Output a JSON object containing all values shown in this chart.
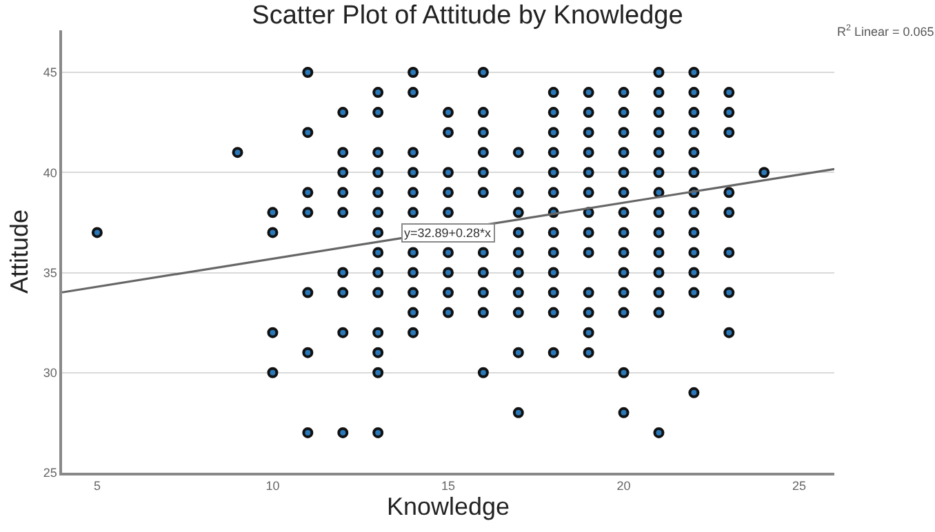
{
  "chart_data": {
    "type": "scatter",
    "title": "Scatter Plot of Attitude by Knowledge",
    "xlabel": "Knowledge",
    "ylabel": "Attitude",
    "xlim": [
      4,
      26
    ],
    "ylim": [
      25,
      47.1
    ],
    "xticks": [
      5,
      10,
      15,
      20,
      25
    ],
    "yticks": [
      25,
      30,
      35,
      40,
      45
    ],
    "grid": "y",
    "marker": "circle",
    "annotations": [
      "R$^{2}$ Linear = 0.065",
      {
        "text": "y=32.89+0.28*x",
        "x": 15,
        "y": 37
      }
    ],
    "series": [
      {
        "color": "#2a78b8",
        "x": [
          5,
          9,
          10,
          10,
          10,
          10,
          11,
          11,
          11,
          11,
          11,
          11,
          11,
          12,
          12,
          12,
          12,
          12,
          12,
          12,
          12,
          12,
          13,
          13,
          13,
          13,
          13,
          13,
          13,
          13,
          13,
          13,
          13,
          13,
          13,
          13,
          14,
          14,
          14,
          14,
          14,
          14,
          14,
          14,
          14,
          14,
          14,
          15,
          15,
          15,
          15,
          15,
          15,
          15,
          15,
          15,
          16,
          16,
          16,
          16,
          16,
          16,
          16,
          16,
          16,
          16,
          16,
          17,
          17,
          17,
          17,
          17,
          17,
          17,
          17,
          17,
          17,
          18,
          18,
          18,
          18,
          18,
          18,
          18,
          18,
          18,
          18,
          18,
          18,
          18,
          19,
          19,
          19,
          19,
          19,
          19,
          19,
          19,
          19,
          19,
          19,
          19,
          19,
          20,
          20,
          20,
          20,
          20,
          20,
          20,
          20,
          20,
          20,
          20,
          20,
          20,
          20,
          21,
          21,
          21,
          21,
          21,
          21,
          21,
          21,
          21,
          21,
          21,
          21,
          21,
          21,
          22,
          22,
          22,
          22,
          22,
          22,
          22,
          22,
          22,
          22,
          22,
          22,
          22,
          23,
          23,
          23,
          23,
          23,
          23,
          23,
          23,
          24
        ],
        "values": [
          37,
          41,
          38,
          37,
          32,
          30,
          45,
          42,
          39,
          38,
          34,
          31,
          27,
          43,
          41,
          40,
          39,
          38,
          35,
          34,
          32,
          27,
          44,
          43,
          41,
          40,
          39,
          38,
          37,
          36,
          35,
          34,
          32,
          31,
          30,
          27,
          45,
          44,
          41,
          40,
          39,
          38,
          36,
          35,
          34,
          33,
          32,
          43,
          42,
          40,
          39,
          38,
          36,
          35,
          34,
          33,
          45,
          43,
          42,
          41,
          40,
          39,
          36,
          35,
          34,
          33,
          30,
          41,
          39,
          38,
          37,
          36,
          35,
          34,
          33,
          31,
          28,
          44,
          43,
          42,
          41,
          40,
          39,
          38,
          37,
          36,
          35,
          34,
          33,
          31,
          44,
          43,
          42,
          41,
          40,
          39,
          38,
          37,
          36,
          34,
          33,
          32,
          31,
          44,
          43,
          42,
          41,
          40,
          39,
          38,
          37,
          36,
          35,
          34,
          33,
          30,
          28,
          45,
          44,
          43,
          42,
          41,
          40,
          39,
          38,
          37,
          36,
          35,
          34,
          33,
          27,
          45,
          44,
          43,
          42,
          41,
          40,
          39,
          38,
          37,
          36,
          35,
          34,
          29,
          44,
          43,
          42,
          39,
          38,
          36,
          34,
          32,
          40
        ]
      },
      {
        "type": "line",
        "color": "#666666",
        "marker": "none",
        "line_style": "solid",
        "x": [
          4,
          26
        ],
        "values": [
          34.01,
          40.17
        ]
      }
    ]
  }
}
